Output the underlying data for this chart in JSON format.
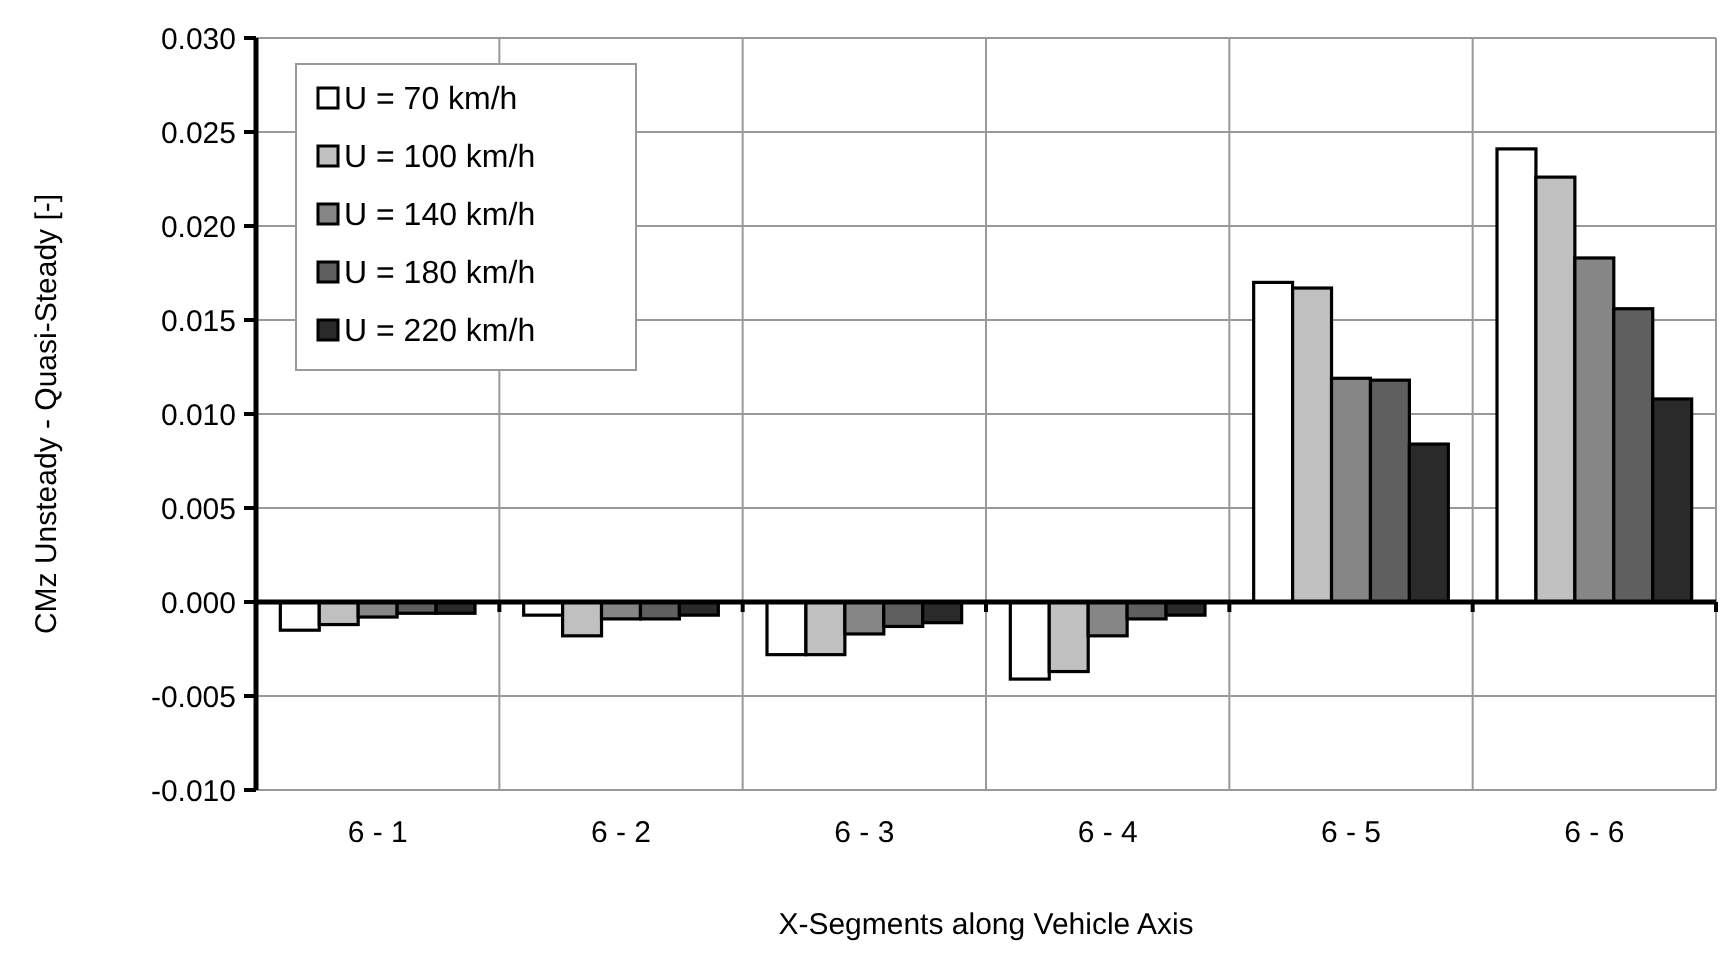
{
  "chart_data": {
    "type": "bar",
    "xlabel": "X-Segments along Vehicle Axis",
    "ylabel": "CMz  Unsteady - Quasi-Steady  [-]",
    "categories": [
      "6 - 1",
      "6 - 2",
      "6 - 3",
      "6 - 4",
      "6 - 5",
      "6 - 6"
    ],
    "series": [
      {
        "name": "U =  70 km/h",
        "color": "#ffffff",
        "values": [
          -0.0015,
          -0.0007,
          -0.0028,
          -0.0041,
          0.017,
          0.0241
        ]
      },
      {
        "name": "U = 100 km/h",
        "color": "#c0c0c0",
        "values": [
          -0.0012,
          -0.0018,
          -0.0028,
          -0.0037,
          0.0167,
          0.0226
        ]
      },
      {
        "name": "U = 140 km/h",
        "color": "#868686",
        "values": [
          -0.0008,
          -0.0009,
          -0.0017,
          -0.0018,
          0.0119,
          0.0183
        ]
      },
      {
        "name": "U = 180 km/h",
        "color": "#5f5f5f",
        "values": [
          -0.0006,
          -0.0009,
          -0.0013,
          -0.0009,
          0.0118,
          0.0156
        ]
      },
      {
        "name": "U = 220 km/h",
        "color": "#2a2a2a",
        "values": [
          -0.0006,
          -0.0007,
          -0.0011,
          -0.0007,
          0.0084,
          0.0108
        ]
      }
    ],
    "ylim": [
      -0.01,
      0.03
    ],
    "yticks": [
      {
        "value": -0.01,
        "label": "-0.010"
      },
      {
        "value": -0.005,
        "label": "-0.005"
      },
      {
        "value": 0,
        "label": "0.000"
      },
      {
        "value": 0.005,
        "label": "0.005"
      },
      {
        "value": 0.01,
        "label": "0.010"
      },
      {
        "value": 0.015,
        "label": "0.015"
      },
      {
        "value": 0.02,
        "label": "0.020"
      },
      {
        "value": 0.025,
        "label": "0.025"
      },
      {
        "value": 0.03,
        "label": "0.030"
      }
    ],
    "grid": true,
    "legend": "top left"
  }
}
